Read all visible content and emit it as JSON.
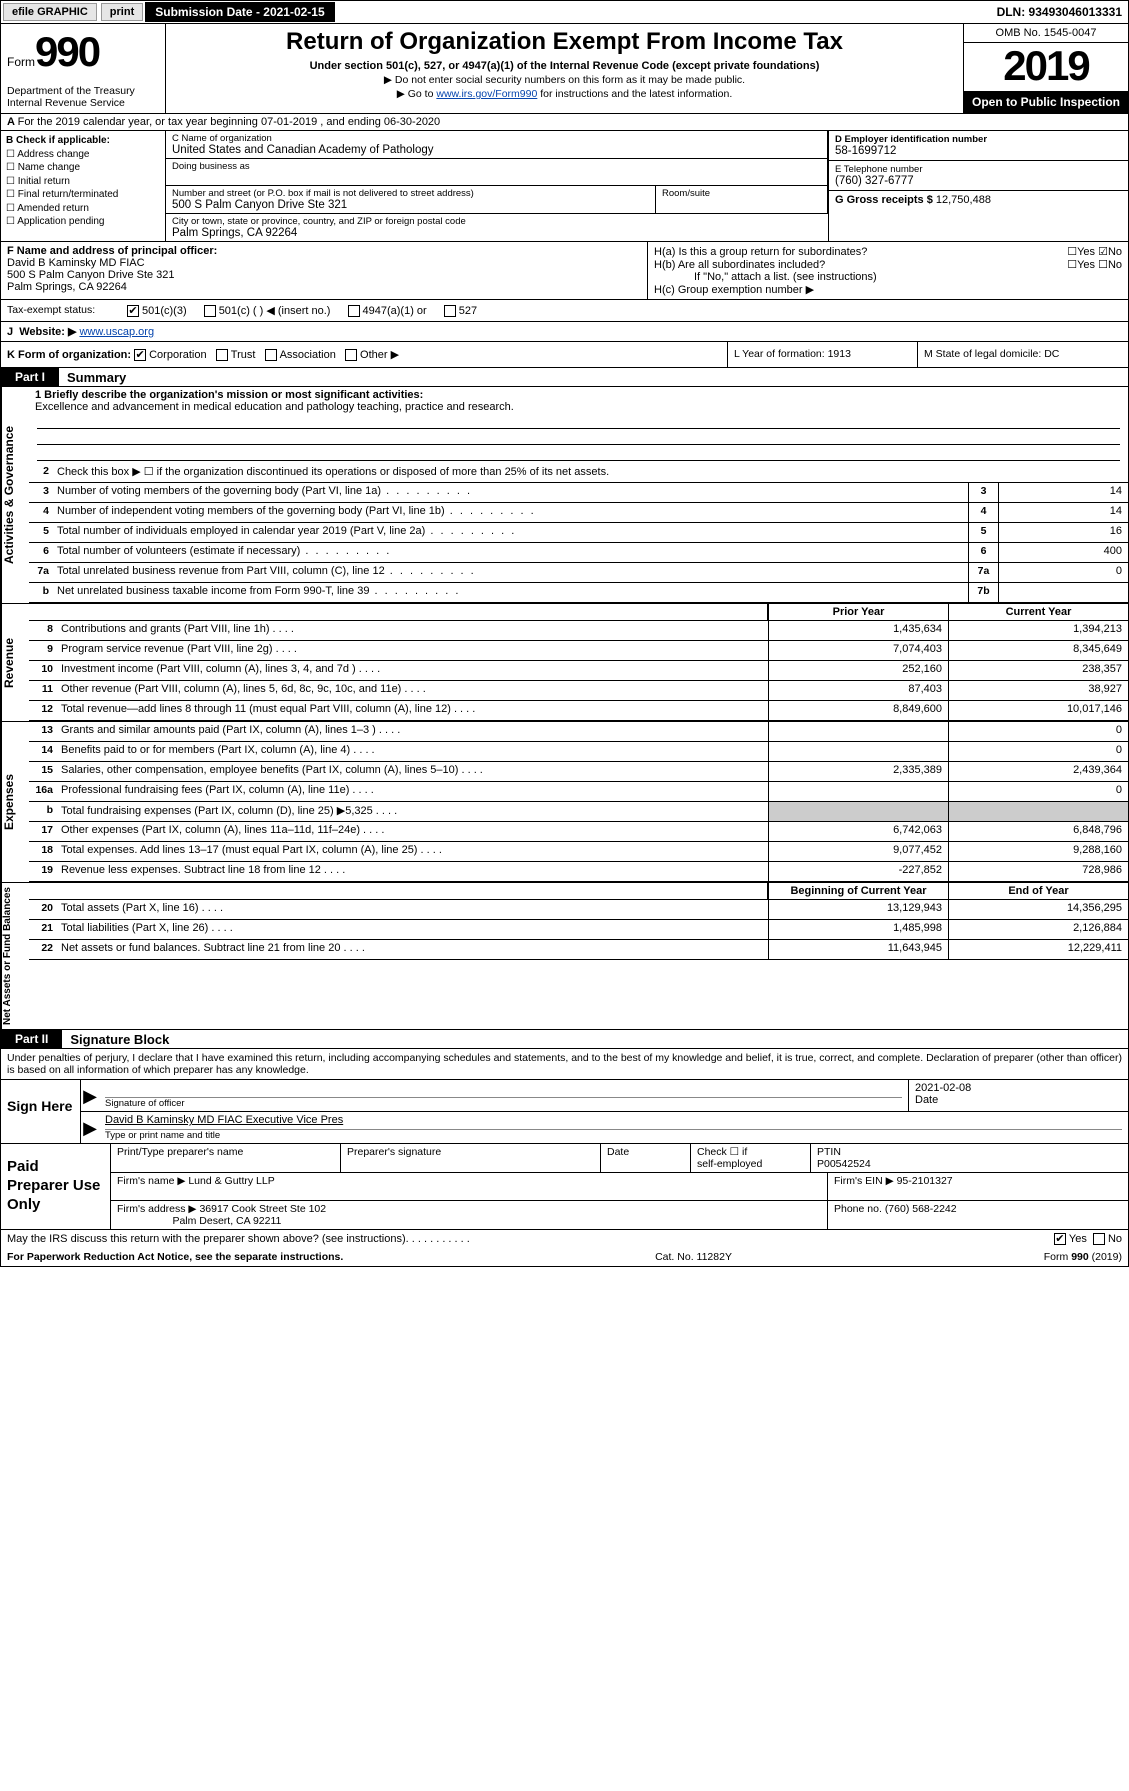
{
  "topbar": {
    "efile": "efile GRAPHIC",
    "print": "print",
    "subdate_label": "Submission Date - 2021-02-15",
    "dln": "DLN: 93493046013331"
  },
  "header": {
    "form_label": "Form",
    "form_no": "990",
    "dept": "Department of the Treasury\nInternal Revenue Service",
    "title": "Return of Organization Exempt From Income Tax",
    "sub1": "Under section 501(c), 527, or 4947(a)(1) of the Internal Revenue Code (except private foundations)",
    "sub2": "Do not enter social security numbers on this form as it may be made public.",
    "sub3_pre": "Go to ",
    "sub3_link": "www.irs.gov/Form990",
    "sub3_post": " for instructions and the latest information.",
    "omb": "OMB No. 1545-0047",
    "year": "2019",
    "inspect": "Open to Public Inspection"
  },
  "lineA": "For the 2019 calendar year, or tax year beginning 07-01-2019    , and ending 06-30-2020",
  "boxB": {
    "label": "B Check if applicable:",
    "opts": [
      "Address change",
      "Name change",
      "Initial return",
      "Final return/terminated",
      "Amended return",
      "Application pending"
    ]
  },
  "boxC": {
    "name_lab": "C Name of organization",
    "name": "United States and Canadian Academy of Pathology",
    "dba_lab": "Doing business as",
    "addr_lab": "Number and street (or P.O. box if mail is not delivered to street address)",
    "room_lab": "Room/suite",
    "addr": "500 S Palm Canyon Drive Ste 321",
    "city_lab": "City or town, state or province, country, and ZIP or foreign postal code",
    "city": "Palm Springs, CA  92264"
  },
  "boxD": {
    "lab": "D Employer identification number",
    "val": "58-1699712"
  },
  "boxE": {
    "lab": "E Telephone number",
    "val": "(760) 327-6777"
  },
  "boxG": {
    "lab": "G Gross receipts $",
    "val": "12,750,488"
  },
  "boxF": {
    "lab": "F  Name and address of principal officer:",
    "name": "David B Kaminsky MD FIAC",
    "addr1": "500 S Palm Canyon Drive Ste 321",
    "addr2": "Palm Springs, CA  92264"
  },
  "boxH": {
    "a": "H(a)  Is this a group return for subordinates?",
    "b": "H(b)  Are all subordinates included?",
    "note": "If \"No,\" attach a list. (see instructions)",
    "c": "H(c)  Group exemption number ▶",
    "yes": "Yes",
    "no": "No"
  },
  "taxrow": {
    "lab": "Tax-exempt status:",
    "o1": "501(c)(3)",
    "o2": "501(c) (   ) ◀ (insert no.)",
    "o3": "4947(a)(1) or",
    "o4": "527"
  },
  "rowJ": {
    "lab": "J",
    "web": "Website: ▶",
    "url": "www.uscap.org"
  },
  "rowK": {
    "lab": "K Form of organization:",
    "o1": "Corporation",
    "o2": "Trust",
    "o3": "Association",
    "o4": "Other ▶"
  },
  "rowL": "L Year of formation: 1913",
  "rowM": "M State of legal domicile: DC",
  "part1": {
    "tag": "Part I",
    "title": "Summary"
  },
  "p1": {
    "l1_lab": "1  Briefly describe the organization's mission or most significant activities:",
    "l1_val": "Excellence and advancement in medical education and pathology teaching, practice and research.",
    "l2": "Check this box ▶ ☐  if the organization discontinued its operations or disposed of more than 25% of its net assets.",
    "rows_single": [
      {
        "n": "3",
        "d": "Number of voting members of the governing body (Part VI, line 1a)",
        "box": "3",
        "v": "14"
      },
      {
        "n": "4",
        "d": "Number of independent voting members of the governing body (Part VI, line 1b)",
        "box": "4",
        "v": "14"
      },
      {
        "n": "5",
        "d": "Total number of individuals employed in calendar year 2019 (Part V, line 2a)",
        "box": "5",
        "v": "16"
      },
      {
        "n": "6",
        "d": "Total number of volunteers (estimate if necessary)",
        "box": "6",
        "v": "400"
      },
      {
        "n": "7a",
        "d": "Total unrelated business revenue from Part VIII, column (C), line 12",
        "box": "7a",
        "v": "0"
      },
      {
        "n": "b",
        "d": "Net unrelated business taxable income from Form 990-T, line 39",
        "box": "7b",
        "v": ""
      }
    ]
  },
  "fin_headers": {
    "prior": "Prior Year",
    "current": "Current Year",
    "boy": "Beginning of Current Year",
    "eoy": "End of Year"
  },
  "revenue": [
    {
      "n": "8",
      "d": "Contributions and grants (Part VIII, line 1h)",
      "p": "1,435,634",
      "c": "1,394,213"
    },
    {
      "n": "9",
      "d": "Program service revenue (Part VIII, line 2g)",
      "p": "7,074,403",
      "c": "8,345,649"
    },
    {
      "n": "10",
      "d": "Investment income (Part VIII, column (A), lines 3, 4, and 7d )",
      "p": "252,160",
      "c": "238,357"
    },
    {
      "n": "11",
      "d": "Other revenue (Part VIII, column (A), lines 5, 6d, 8c, 9c, 10c, and 11e)",
      "p": "87,403",
      "c": "38,927"
    },
    {
      "n": "12",
      "d": "Total revenue—add lines 8 through 11 (must equal Part VIII, column (A), line 12)",
      "p": "8,849,600",
      "c": "10,017,146"
    }
  ],
  "expenses": [
    {
      "n": "13",
      "d": "Grants and similar amounts paid (Part IX, column (A), lines 1–3 )",
      "p": "",
      "c": "0"
    },
    {
      "n": "14",
      "d": "Benefits paid to or for members (Part IX, column (A), line 4)",
      "p": "",
      "c": "0"
    },
    {
      "n": "15",
      "d": "Salaries, other compensation, employee benefits (Part IX, column (A), lines 5–10)",
      "p": "2,335,389",
      "c": "2,439,364"
    },
    {
      "n": "16a",
      "d": "Professional fundraising fees (Part IX, column (A), line 11e)",
      "p": "",
      "c": "0"
    },
    {
      "n": "b",
      "d": "Total fundraising expenses (Part IX, column (D), line 25) ▶5,325",
      "p": "GRAY",
      "c": "GRAY"
    },
    {
      "n": "17",
      "d": "Other expenses (Part IX, column (A), lines 11a–11d, 11f–24e)",
      "p": "6,742,063",
      "c": "6,848,796"
    },
    {
      "n": "18",
      "d": "Total expenses. Add lines 13–17 (must equal Part IX, column (A), line 25)",
      "p": "9,077,452",
      "c": "9,288,160"
    },
    {
      "n": "19",
      "d": "Revenue less expenses. Subtract line 18 from line 12",
      "p": "-227,852",
      "c": "728,986"
    }
  ],
  "netassets": [
    {
      "n": "20",
      "d": "Total assets (Part X, line 16)",
      "p": "13,129,943",
      "c": "14,356,295"
    },
    {
      "n": "21",
      "d": "Total liabilities (Part X, line 26)",
      "p": "1,485,998",
      "c": "2,126,884"
    },
    {
      "n": "22",
      "d": "Net assets or fund balances. Subtract line 21 from line 20",
      "p": "11,643,945",
      "c": "12,229,411"
    }
  ],
  "vlabels": {
    "gov": "Activities & Governance",
    "rev": "Revenue",
    "exp": "Expenses",
    "net": "Net Assets or Fund Balances"
  },
  "part2": {
    "tag": "Part II",
    "title": "Signature Block"
  },
  "perjury": "Under penalties of perjury, I declare that I have examined this return, including accompanying schedules and statements, and to the best of my knowledge and belief, it is true, correct, and complete. Declaration of preparer (other than officer) is based on all information of which preparer has any knowledge.",
  "sign": {
    "here": "Sign Here",
    "sig_lab": "Signature of officer",
    "date": "2021-02-08",
    "date_lab": "Date",
    "name": "David B Kaminsky MD FIAC  Executive Vice Pres",
    "name_lab": "Type or print name and title"
  },
  "prep": {
    "title": "Paid Preparer Use Only",
    "h1": "Print/Type preparer's name",
    "h2": "Preparer's signature",
    "h3": "Date",
    "h4_a": "Check ☐ if",
    "h4_b": "self-employed",
    "h5": "PTIN",
    "ptin": "P00542524",
    "firm_lab": "Firm's name    ▶",
    "firm": "Lund & Guttry LLP",
    "ein_lab": "Firm's EIN ▶",
    "ein": "95-2101327",
    "addr_lab": "Firm's address ▶",
    "addr1": "36917 Cook Street Ste 102",
    "addr2": "Palm Desert, CA  92211",
    "phone_lab": "Phone no.",
    "phone": "(760) 568-2242"
  },
  "discuss": "May the IRS discuss this return with the preparer shown above? (see instructions)",
  "footer": {
    "left": "For Paperwork Reduction Act Notice, see the separate instructions.",
    "mid": "Cat. No. 11282Y",
    "right": "Form 990 (2019)"
  }
}
